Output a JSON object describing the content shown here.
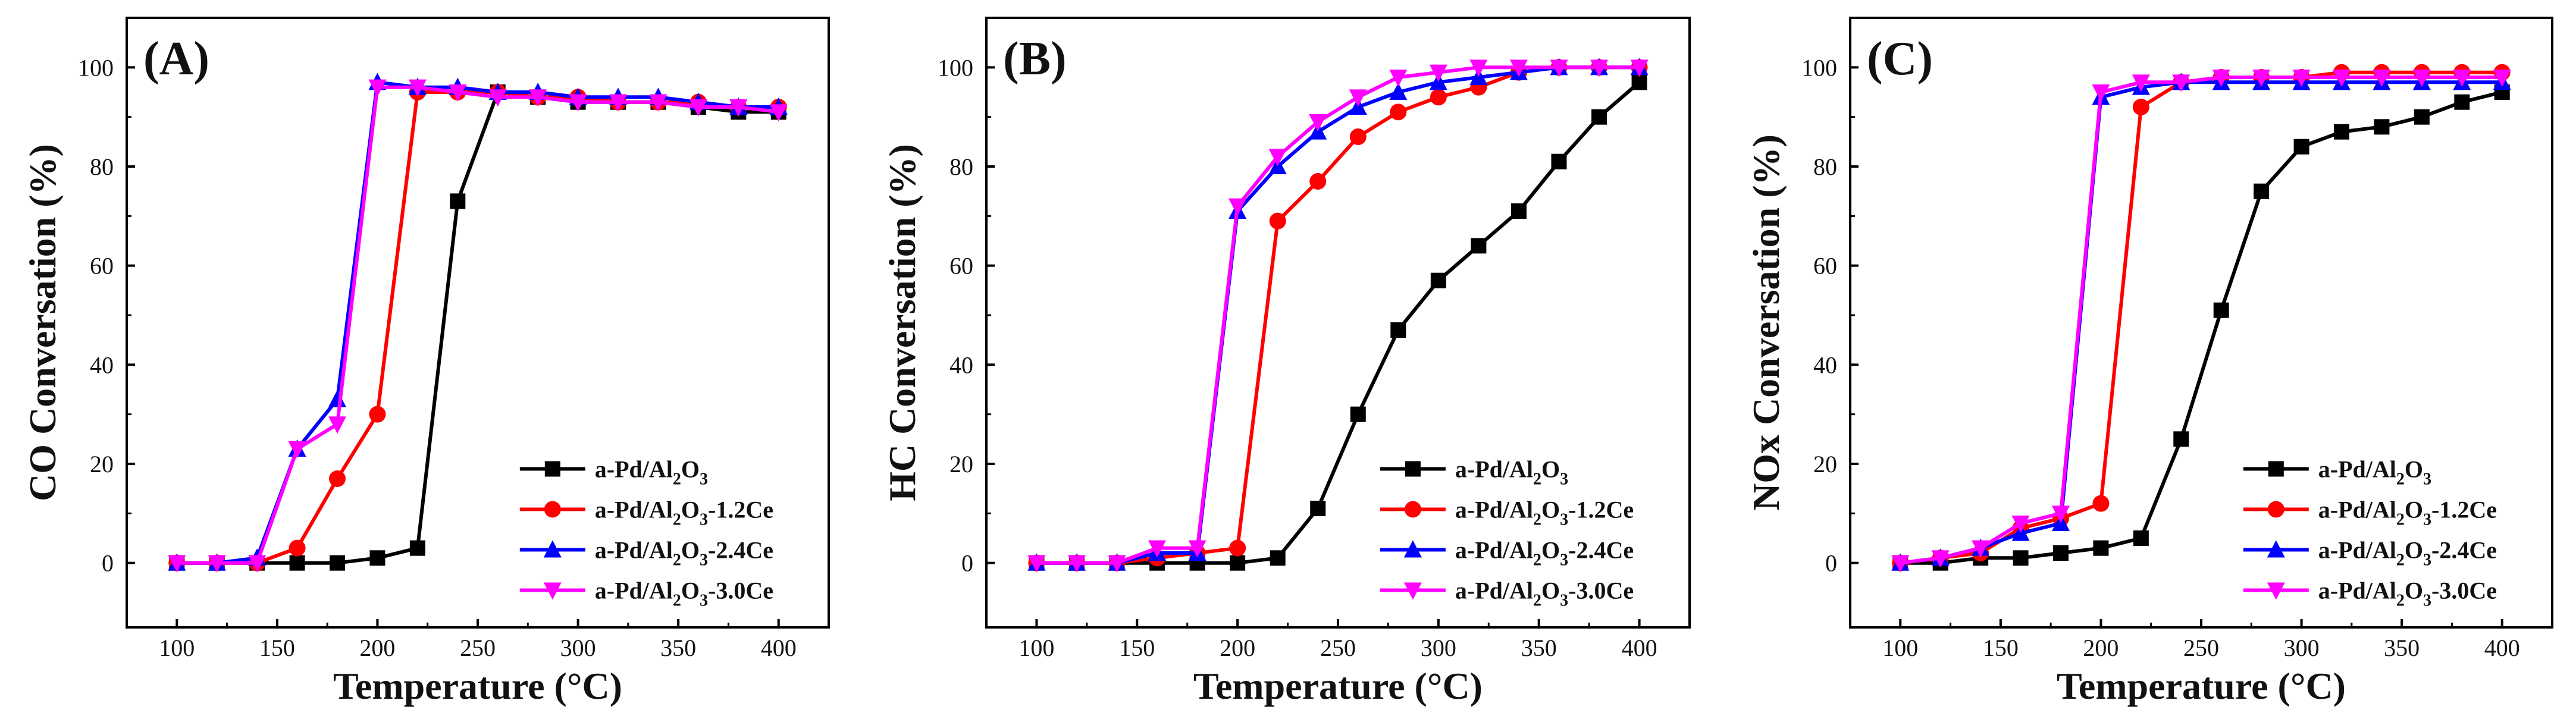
{
  "figure": {
    "panels": [
      {
        "label": "(A)",
        "type": "line",
        "title": "",
        "xlabel": "Temperature (°C)",
        "ylabel": "CO Conversation (%)",
        "xlim": [
          75,
          425
        ],
        "ylim": [
          -13,
          110
        ],
        "xticks": [
          100,
          150,
          200,
          250,
          300,
          350,
          400
        ],
        "yticks": [
          0,
          20,
          40,
          60,
          80,
          100
        ],
        "legend_position": "bottom-right",
        "x": [
          100,
          120,
          140,
          160,
          180,
          200,
          220,
          240,
          260,
          280,
          300,
          320,
          340,
          360,
          380,
          400
        ],
        "series": [
          {
            "name": "a-Pd/Al2O3",
            "name_base": "a-Pd/Al",
            "sub1": "2",
            "mid": "O",
            "sub2": "3",
            "suffix": "",
            "color": "#000000",
            "marker": "square",
            "values": [
              0,
              0,
              0,
              0,
              0,
              1,
              3,
              73,
              95,
              94,
              93,
              93,
              93,
              92,
              91,
              91
            ]
          },
          {
            "name": "a-Pd/Al2O3-1.2Ce",
            "name_base": "a-Pd/Al",
            "sub1": "2",
            "mid": "O",
            "sub2": "3",
            "suffix": "-1.2Ce",
            "color": "#ff0000",
            "marker": "circle",
            "values": [
              0,
              0,
              0,
              3,
              17,
              30,
              95,
              95,
              95,
              94,
              94,
              93,
              93,
              93,
              92,
              92
            ]
          },
          {
            "name": "a-Pd/Al2O3-2.4Ce",
            "name_base": "a-Pd/Al",
            "sub1": "2",
            "mid": "O",
            "sub2": "3",
            "suffix": "-2.4Ce",
            "color": "#0000ff",
            "marker": "triangle-up",
            "values": [
              0,
              0,
              1,
              23,
              33,
              97,
              96,
              96,
              95,
              95,
              94,
              94,
              94,
              93,
              92,
              92
            ]
          },
          {
            "name": "a-Pd/Al2O3-3.0Ce",
            "name_base": "a-Pd/Al",
            "sub1": "2",
            "mid": "O",
            "sub2": "3",
            "suffix": "-3.0Ce",
            "color": "#ff00ff",
            "marker": "triangle-down",
            "values": [
              0,
              0,
              0,
              23,
              28,
              96,
              96,
              95,
              94,
              94,
              93,
              93,
              93,
              92,
              92,
              91
            ]
          }
        ]
      },
      {
        "label": "(B)",
        "type": "line",
        "title": "",
        "xlabel": "Temperature (°C)",
        "ylabel": "HC Conversation (%)",
        "xlim": [
          75,
          425
        ],
        "ylim": [
          -13,
          110
        ],
        "xticks": [
          100,
          150,
          200,
          250,
          300,
          350,
          400
        ],
        "yticks": [
          0,
          20,
          40,
          60,
          80,
          100
        ],
        "legend_position": "bottom-right",
        "x": [
          100,
          120,
          140,
          160,
          180,
          200,
          220,
          240,
          260,
          280,
          300,
          320,
          340,
          360,
          380,
          400
        ],
        "series": [
          {
            "name": "a-Pd/Al2O3",
            "name_base": "a-Pd/Al",
            "sub1": "2",
            "mid": "O",
            "sub2": "3",
            "suffix": "",
            "color": "#000000",
            "marker": "square",
            "values": [
              0,
              0,
              0,
              0,
              0,
              0,
              1,
              11,
              30,
              47,
              57,
              64,
              71,
              81,
              90,
              97
            ]
          },
          {
            "name": "a-Pd/Al2O3-1.2Ce",
            "name_base": "a-Pd/Al",
            "sub1": "2",
            "mid": "O",
            "sub2": "3",
            "suffix": "-1.2Ce",
            "color": "#ff0000",
            "marker": "circle",
            "values": [
              0,
              0,
              0,
              1,
              2,
              3,
              69,
              77,
              86,
              91,
              94,
              96,
              99,
              100,
              100,
              100
            ]
          },
          {
            "name": "a-Pd/Al2O3-2.4Ce",
            "name_base": "a-Pd/Al",
            "sub1": "2",
            "mid": "O",
            "sub2": "3",
            "suffix": "-2.4Ce",
            "color": "#0000ff",
            "marker": "triangle-up",
            "values": [
              0,
              0,
              0,
              2,
              2,
              71,
              80,
              87,
              92,
              95,
              97,
              98,
              99,
              100,
              100,
              100
            ]
          },
          {
            "name": "a-Pd/Al2O3-3.0Ce",
            "name_base": "a-Pd/Al",
            "sub1": "2",
            "mid": "O",
            "sub2": "3",
            "suffix": "-3.0Ce",
            "color": "#ff00ff",
            "marker": "triangle-down",
            "values": [
              0,
              0,
              0,
              3,
              3,
              72,
              82,
              89,
              94,
              98,
              99,
              100,
              100,
              100,
              100,
              100
            ]
          }
        ]
      },
      {
        "label": "(C)",
        "type": "line",
        "title": "",
        "xlabel": "Temperature (°C)",
        "ylabel": "NOx Conversation (%)",
        "xlim": [
          75,
          425
        ],
        "ylim": [
          -13,
          110
        ],
        "xticks": [
          100,
          150,
          200,
          250,
          300,
          350,
          400
        ],
        "yticks": [
          0,
          20,
          40,
          60,
          80,
          100
        ],
        "legend_position": "bottom-right",
        "x": [
          100,
          120,
          140,
          160,
          180,
          200,
          220,
          240,
          260,
          280,
          300,
          320,
          340,
          360,
          380,
          400
        ],
        "series": [
          {
            "name": "a-Pd/Al2O3",
            "name_base": "a-Pd/Al",
            "sub1": "2",
            "mid": "O",
            "sub2": "3",
            "suffix": "",
            "color": "#000000",
            "marker": "square",
            "values": [
              0,
              0,
              1,
              1,
              2,
              3,
              5,
              25,
              51,
              75,
              84,
              87,
              88,
              90,
              93,
              95
            ]
          },
          {
            "name": "a-Pd/Al2O3-1.2Ce",
            "name_base": "a-Pd/Al",
            "sub1": "2",
            "mid": "O",
            "sub2": "3",
            "suffix": "-1.2Ce",
            "color": "#ff0000",
            "marker": "circle",
            "values": [
              0,
              1,
              2,
              7,
              9,
              12,
              92,
              97,
              98,
              98,
              98,
              99,
              99,
              99,
              99,
              99
            ]
          },
          {
            "name": "a-Pd/Al2O3-2.4Ce",
            "name_base": "a-Pd/Al",
            "sub1": "2",
            "mid": "O",
            "sub2": "3",
            "suffix": "-2.4Ce",
            "color": "#0000ff",
            "marker": "triangle-up",
            "values": [
              0,
              1,
              3,
              6,
              8,
              94,
              96,
              97,
              97,
              97,
              97,
              97,
              97,
              97,
              97,
              97
            ]
          },
          {
            "name": "a-Pd/Al2O3-3.0Ce",
            "name_base": "a-Pd/Al",
            "sub1": "2",
            "mid": "O",
            "sub2": "3",
            "suffix": "-3.0Ce",
            "color": "#ff00ff",
            "marker": "triangle-down",
            "values": [
              0,
              1,
              3,
              8,
              10,
              95,
              97,
              97,
              98,
              98,
              98,
              98,
              98,
              98,
              98,
              98
            ]
          }
        ]
      }
    ]
  },
  "chart_data": [
    {
      "type": "line",
      "title": "(A)",
      "xlabel": "Temperature (°C)",
      "ylabel": "CO Conversation (%)",
      "xlim": [
        75,
        425
      ],
      "ylim": [
        -13,
        110
      ],
      "x": [
        100,
        120,
        140,
        160,
        180,
        200,
        220,
        240,
        260,
        280,
        300,
        320,
        340,
        360,
        380,
        400
      ],
      "series": [
        {
          "name": "a-Pd/Al2O3",
          "values": [
            0,
            0,
            0,
            0,
            0,
            1,
            3,
            73,
            95,
            94,
            93,
            93,
            93,
            92,
            91,
            91
          ]
        },
        {
          "name": "a-Pd/Al2O3-1.2Ce",
          "values": [
            0,
            0,
            0,
            3,
            17,
            30,
            95,
            95,
            95,
            94,
            94,
            93,
            93,
            93,
            92,
            92
          ]
        },
        {
          "name": "a-Pd/Al2O3-2.4Ce",
          "values": [
            0,
            0,
            1,
            23,
            33,
            97,
            96,
            96,
            95,
            95,
            94,
            94,
            94,
            93,
            92,
            92
          ]
        },
        {
          "name": "a-Pd/Al2O3-3.0Ce",
          "values": [
            0,
            0,
            0,
            23,
            28,
            96,
            96,
            95,
            94,
            94,
            93,
            93,
            93,
            92,
            92,
            91
          ]
        }
      ]
    },
    {
      "type": "line",
      "title": "(B)",
      "xlabel": "Temperature (°C)",
      "ylabel": "HC Conversation (%)",
      "xlim": [
        75,
        425
      ],
      "ylim": [
        -13,
        110
      ],
      "x": [
        100,
        120,
        140,
        160,
        180,
        200,
        220,
        240,
        260,
        280,
        300,
        320,
        340,
        360,
        380,
        400
      ],
      "series": [
        {
          "name": "a-Pd/Al2O3",
          "values": [
            0,
            0,
            0,
            0,
            0,
            0,
            1,
            11,
            30,
            47,
            57,
            64,
            71,
            81,
            90,
            97
          ]
        },
        {
          "name": "a-Pd/Al2O3-1.2Ce",
          "values": [
            0,
            0,
            0,
            1,
            2,
            3,
            69,
            77,
            86,
            91,
            94,
            96,
            99,
            100,
            100,
            100
          ]
        },
        {
          "name": "a-Pd/Al2O3-2.4Ce",
          "values": [
            0,
            0,
            0,
            2,
            2,
            71,
            80,
            87,
            92,
            95,
            97,
            98,
            99,
            100,
            100,
            100
          ]
        },
        {
          "name": "a-Pd/Al2O3-3.0Ce",
          "values": [
            0,
            0,
            0,
            3,
            3,
            72,
            82,
            89,
            94,
            98,
            99,
            100,
            100,
            100,
            100,
            100
          ]
        }
      ]
    },
    {
      "type": "line",
      "title": "(C)",
      "xlabel": "Temperature (°C)",
      "ylabel": "NOx Conversation (%)",
      "xlim": [
        75,
        425
      ],
      "ylim": [
        -13,
        110
      ],
      "x": [
        100,
        120,
        140,
        160,
        180,
        200,
        220,
        240,
        260,
        280,
        300,
        320,
        340,
        360,
        380,
        400
      ],
      "series": [
        {
          "name": "a-Pd/Al2O3",
          "values": [
            0,
            0,
            1,
            1,
            2,
            3,
            5,
            25,
            51,
            75,
            84,
            87,
            88,
            90,
            93,
            95
          ]
        },
        {
          "name": "a-Pd/Al2O3-1.2Ce",
          "values": [
            0,
            1,
            2,
            7,
            9,
            12,
            92,
            97,
            98,
            98,
            98,
            99,
            99,
            99,
            99,
            99
          ]
        },
        {
          "name": "a-Pd/Al2O3-2.4Ce",
          "values": [
            0,
            1,
            3,
            6,
            8,
            94,
            96,
            97,
            97,
            97,
            97,
            97,
            97,
            97,
            97,
            97
          ]
        },
        {
          "name": "a-Pd/Al2O3-3.0Ce",
          "values": [
            0,
            1,
            3,
            8,
            10,
            95,
            97,
            97,
            98,
            98,
            98,
            98,
            98,
            98,
            98,
            98
          ]
        }
      ]
    }
  ]
}
